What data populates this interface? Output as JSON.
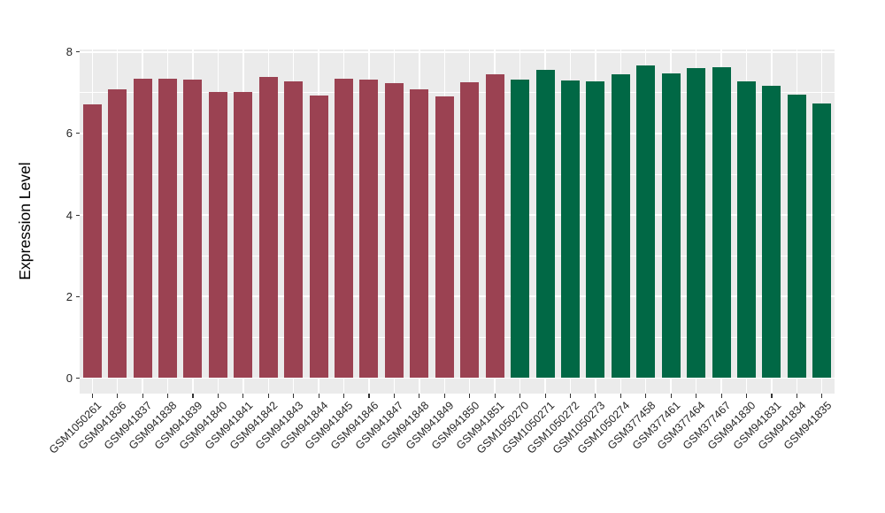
{
  "chart_data": {
    "type": "bar",
    "title": "",
    "xlabel": "",
    "ylabel": "Expression Level",
    "ylim": [
      0,
      8
    ],
    "yticks": [
      0,
      2,
      4,
      6,
      8
    ],
    "ytick_labels": [
      "0",
      "2",
      "4",
      "6",
      "8"
    ],
    "yticks_minor": [
      1,
      3,
      5,
      7
    ],
    "grid": "on",
    "legend_position": "none",
    "panel_background": "#EBEBEB",
    "gridline_color": "#FFFFFF",
    "group_colors": {
      "group1": "#9B4252",
      "group2": "#016845"
    },
    "categories": [
      "GSM1050261",
      "GSM941836",
      "GSM941837",
      "GSM941838",
      "GSM941839",
      "GSM941840",
      "GSM941841",
      "GSM941842",
      "GSM941843",
      "GSM941844",
      "GSM941845",
      "GSM941846",
      "GSM941847",
      "GSM941848",
      "GSM941849",
      "GSM941850",
      "GSM941851",
      "GSM1050270",
      "GSM1050271",
      "GSM1050272",
      "GSM1050273",
      "GSM1050274",
      "GSM377458",
      "GSM377461",
      "GSM377464",
      "GSM377467",
      "GSM941830",
      "GSM941831",
      "GSM941834",
      "GSM941835"
    ],
    "values": [
      6.72,
      7.08,
      7.35,
      7.35,
      7.33,
      7.01,
      7.01,
      7.39,
      7.27,
      6.93,
      7.35,
      7.33,
      7.23,
      7.08,
      6.91,
      7.25,
      7.45,
      7.32,
      7.55,
      7.3,
      7.28,
      7.45,
      7.68,
      7.48,
      7.6,
      7.62,
      7.28,
      7.18,
      6.95,
      6.73
    ],
    "bar_groups": [
      "group1",
      "group1",
      "group1",
      "group1",
      "group1",
      "group1",
      "group1",
      "group1",
      "group1",
      "group1",
      "group1",
      "group1",
      "group1",
      "group1",
      "group1",
      "group1",
      "group1",
      "group2",
      "group2",
      "group2",
      "group2",
      "group2",
      "group2",
      "group2",
      "group2",
      "group2",
      "group2",
      "group2",
      "group2",
      "group2"
    ]
  }
}
